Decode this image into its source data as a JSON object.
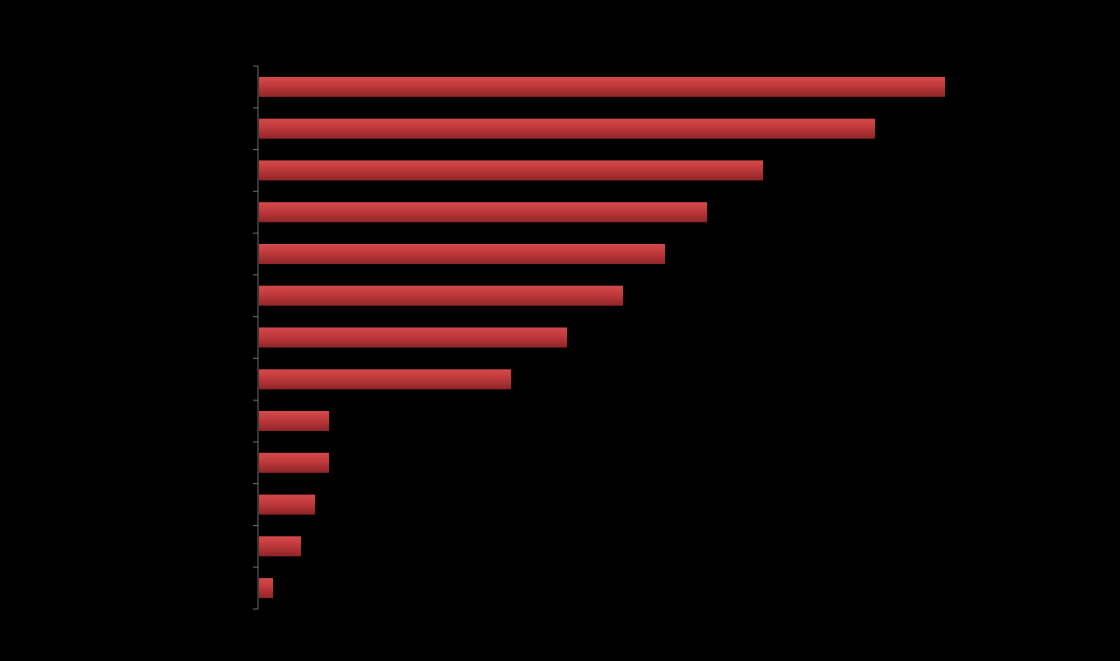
{
  "chart_data": {
    "type": "bar",
    "orientation": "horizontal",
    "title": "",
    "xlabel": "",
    "ylabel": "",
    "categories": [
      "",
      "",
      "",
      "",
      "",
      "",
      "",
      "",
      "",
      "",
      "",
      "",
      ""
    ],
    "values": [
      49,
      44,
      36,
      32,
      29,
      26,
      22,
      18,
      5,
      5,
      4,
      3,
      1
    ],
    "xlim": [
      0,
      50
    ],
    "grid": false,
    "legend": "none",
    "colors": {
      "background": "#000000",
      "bar": "#c0393b",
      "bar_highlight": "#d44a4a",
      "bar_shadow": "#8f2527",
      "axis": "#6b6b6b"
    }
  }
}
